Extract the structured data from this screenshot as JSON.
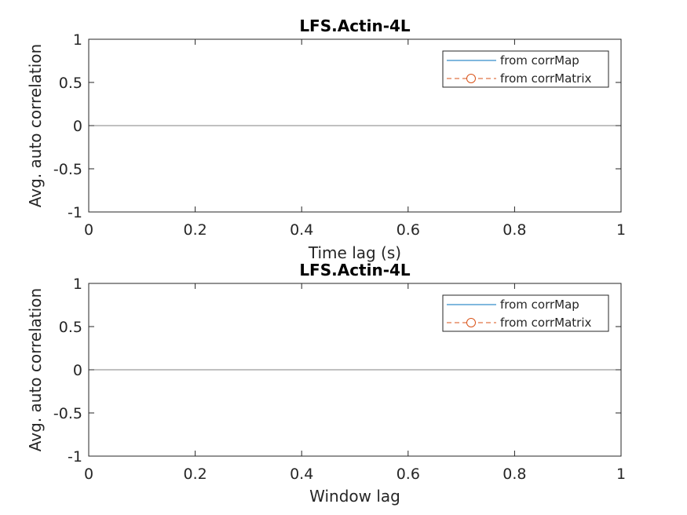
{
  "chart_data": [
    {
      "type": "line",
      "title": "LFS.Actin-4L",
      "xlabel": "Time lag (s)",
      "ylabel": "Avg. auto correlation",
      "xlim": [
        0,
        1
      ],
      "ylim": [
        -1,
        1
      ],
      "xticks": [
        "0",
        "0.2",
        "0.4",
        "0.6",
        "0.8",
        "1"
      ],
      "yticks": [
        "1",
        "0.5",
        "0",
        "-0.5",
        "-1"
      ],
      "grid": false,
      "legend_position": "top-right",
      "reference_line_y": 0,
      "series": [
        {
          "name": "from corrMap",
          "color": "#0072BD",
          "style": "solid",
          "marker": "none",
          "values": []
        },
        {
          "name": "from corrMatrix",
          "color": "#D95319",
          "style": "dashed",
          "marker": "circle",
          "values": []
        }
      ]
    },
    {
      "type": "line",
      "title": "LFS.Actin-4L",
      "xlabel": "Window lag",
      "ylabel": "Avg. auto correlation",
      "xlim": [
        0,
        1
      ],
      "ylim": [
        -1,
        1
      ],
      "xticks": [
        "0",
        "0.2",
        "0.4",
        "0.6",
        "0.8",
        "1"
      ],
      "yticks": [
        "1",
        "0.5",
        "0",
        "-0.5",
        "-1"
      ],
      "grid": false,
      "legend_position": "top-right",
      "reference_line_y": 0,
      "series": [
        {
          "name": "from corrMap",
          "color": "#0072BD",
          "style": "solid",
          "marker": "none",
          "values": []
        },
        {
          "name": "from corrMatrix",
          "color": "#D95319",
          "style": "dashed",
          "marker": "circle",
          "values": []
        }
      ]
    }
  ]
}
